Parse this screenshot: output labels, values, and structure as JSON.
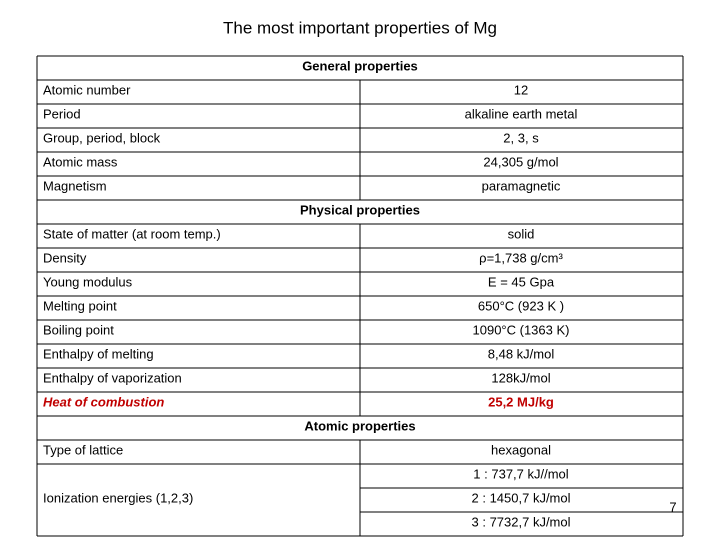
{
  "title": "The most important properties of Mg",
  "sections": [
    {
      "title": "General properties",
      "rows": [
        {
          "label": "Atomic number",
          "value": "12"
        },
        {
          "label": "Period",
          "value": "alkaline earth metal"
        },
        {
          "label": "Group, period, block",
          "value": "2, 3, s"
        },
        {
          "label": "Atomic mass",
          "value": "24,305 g/mol"
        },
        {
          "label": "Magnetism",
          "value": "paramagnetic"
        }
      ]
    },
    {
      "title": "Physical properties",
      "rows": [
        {
          "label": "State of matter (at room temp.)",
          "value": "solid"
        },
        {
          "label": "Density",
          "value": "ρ=1,738 g/cm³"
        },
        {
          "label": "Young modulus",
          "value": "E = 45 Gpa"
        },
        {
          "label": "Melting point",
          "value": "650°C (923 K )"
        },
        {
          "label": "Boiling point",
          "value": "1090°C (1363 K)"
        },
        {
          "label": "Enthalpy of melting",
          "value": "8,48 kJ/mol"
        },
        {
          "label": "Enthalpy of vaporization",
          "value": "128kJ/mol"
        },
        {
          "label": "Heat of combustion",
          "value": "25,2 MJ/kg",
          "highlight": true
        }
      ]
    },
    {
      "title": "Atomic properties",
      "rows": [
        {
          "label": "Type of lattice",
          "value": "hexagonal"
        },
        {
          "label": "Ionization energies (1,2,3)",
          "values": [
            "1 : 737,7 kJ//mol",
            "2 : 1450,7 kJ/mol",
            "3 : 7732,7 kJ/mol"
          ]
        }
      ]
    }
  ],
  "page_number": "7"
}
